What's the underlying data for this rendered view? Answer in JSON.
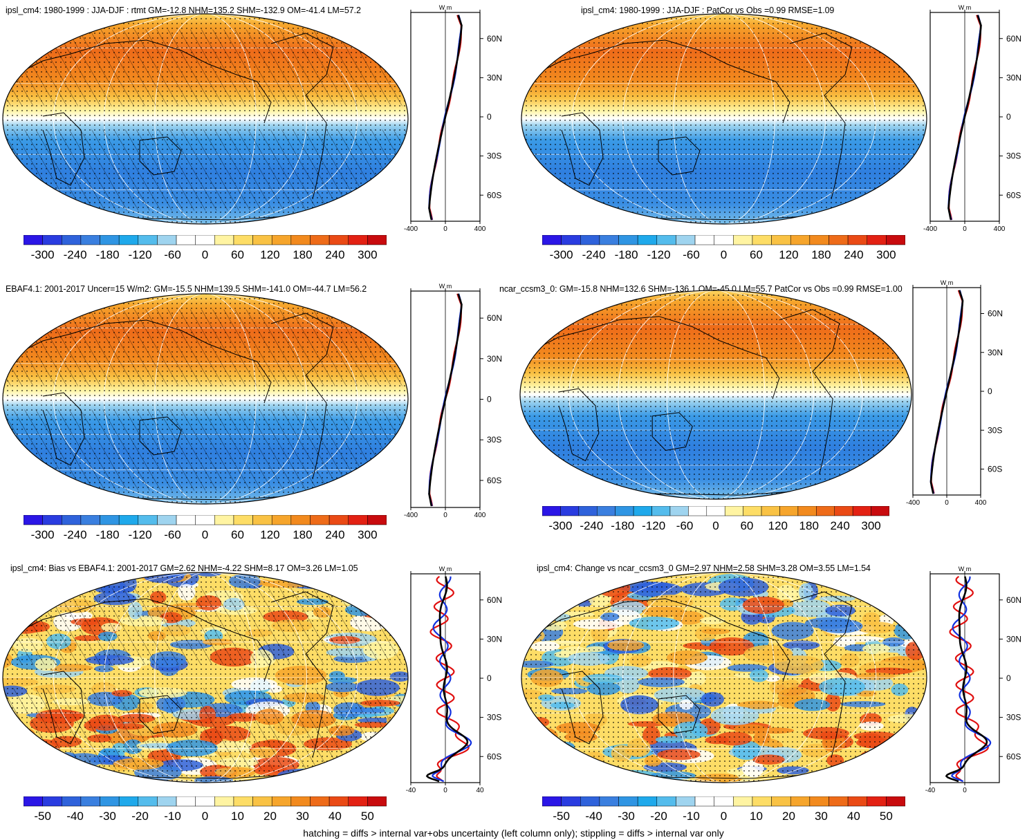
{
  "footer": "hatching = diffs > internal var+obs uncertainty (left column only); stippling = diffs > internal var only",
  "colors": {
    "scale": [
      "#2b16e6",
      "#2a3ce0",
      "#2f62db",
      "#3a7fdf",
      "#2f95e3",
      "#1fa9eb",
      "#54bcec",
      "#9fd4ef",
      "#ffffff",
      "#ffffff",
      "#fff4a2",
      "#fddd66",
      "#f9c244",
      "#f6a52c",
      "#f28a1e",
      "#ee6b19",
      "#ea4a15",
      "#e32113",
      "#c80b0e"
    ],
    "line_model": "#e01010",
    "line_obs": "#1030e0",
    "line_mean": "#000000"
  },
  "chart_data": [
    {
      "id": "p1",
      "type": "heatmap",
      "title": "ipsl_cm4: 1980-1999 : JJA-DJF : rtmt GM=-12.8 NHM=135.2 SHM=-132.9 OM=-41.4 LM=57.2",
      "colorbar": {
        "ticks": [
          "-300",
          "-240",
          "-180",
          "-120",
          "-60",
          "0",
          "60",
          "120",
          "180",
          "240",
          "300"
        ]
      },
      "profile": {
        "xlabel": "W m",
        "x_ticks": [
          "-400",
          "0",
          "400"
        ],
        "xlim": [
          -400,
          400
        ],
        "y_ticks": [
          "60N",
          "30N",
          "0",
          "30S",
          "60S"
        ],
        "ylim": [
          -80,
          80
        ]
      },
      "hatching": true
    },
    {
      "id": "p2",
      "type": "heatmap",
      "title": "ipsl_cm4: 1980-1999 : JJA-DJF : PatCor vs Obs =0.99 RMSE=1.09",
      "colorbar": {
        "ticks": [
          "-300",
          "-240",
          "-180",
          "-120",
          "-60",
          "0",
          "60",
          "120",
          "180",
          "240",
          "300"
        ]
      },
      "profile": {
        "xlabel": "W m",
        "x_ticks": [
          "-400",
          "0",
          "400"
        ],
        "xlim": [
          -400,
          400
        ],
        "y_ticks": [
          "60N",
          "30N",
          "0",
          "30S",
          "60S"
        ],
        "ylim": [
          -80,
          80
        ]
      },
      "hatching": false
    },
    {
      "id": "p3",
      "type": "heatmap",
      "title": "EBAF4.1: 2001-2017 Uncer=15 W/m2: GM=-15.5 NHM=139.5 SHM=-141.0 OM=-44.7 LM=56.2",
      "colorbar": {
        "ticks": [
          "-300",
          "-240",
          "-180",
          "-120",
          "-60",
          "0",
          "60",
          "120",
          "180",
          "240",
          "300"
        ]
      },
      "profile": {
        "xlabel": "W m",
        "x_ticks": [
          "-400",
          "0",
          "400"
        ],
        "xlim": [
          -400,
          400
        ],
        "y_ticks": [
          "60N",
          "30N",
          "0",
          "30S",
          "60S"
        ],
        "ylim": [
          -80,
          80
        ]
      },
      "hatching": true
    },
    {
      "id": "p4",
      "type": "heatmap",
      "title": "ncar_ccsm3_0: GM=-15.8 NHM=132.6 SHM=-136.1 OM=-45.0 LM=55.7 PatCor vs Obs =0.99 RMSE=1.00",
      "colorbar": {
        "ticks": [
          "-300",
          "-240",
          "-180",
          "-120",
          "-60",
          "0",
          "60",
          "120",
          "180",
          "240",
          "300"
        ]
      },
      "profile": {
        "xlabel": "W m",
        "x_ticks": [
          "-400",
          "0",
          "400"
        ],
        "xlim": [
          -400,
          400
        ],
        "y_ticks": [
          "60N",
          "30N",
          "0",
          "30S",
          "60S"
        ],
        "ylim": [
          -80,
          80
        ]
      },
      "hatching": false
    },
    {
      "id": "p5",
      "type": "heatmap",
      "title": "ipsl_cm4: Bias vs EBAF4.1: 2001-2017 GM=2.62 NHM=-4.22 SHM=8.17 OM=3.26 LM=1.05",
      "colorbar": {
        "ticks": [
          "-50",
          "-40",
          "-30",
          "-20",
          "-10",
          "0",
          "10",
          "20",
          "30",
          "40",
          "50"
        ]
      },
      "profile": {
        "xlabel": "W m",
        "x_ticks": [
          "-40",
          "0",
          "40"
        ],
        "xlim": [
          -40,
          40
        ],
        "y_ticks": [
          "60N",
          "30N",
          "0",
          "30S",
          "60S"
        ],
        "ylim": [
          -80,
          80
        ]
      },
      "hatching": true
    },
    {
      "id": "p6",
      "type": "heatmap",
      "title": "ipsl_cm4: Change vs ncar_ccsm3_0 GM=2.97 NHM=2.58 SHM=3.28 OM=3.55 LM=1.54",
      "colorbar": {
        "ticks": [
          "-50",
          "-40",
          "-30",
          "-20",
          "-10",
          "0",
          "10",
          "20",
          "30",
          "40",
          "50"
        ]
      },
      "profile": {
        "xlabel": "W m",
        "x_ticks": [
          "-40",
          "0"
        ],
        "xlim": [
          -40,
          40
        ],
        "y_ticks": [
          "60N",
          "30N",
          "0",
          "30S",
          "60S"
        ],
        "ylim": [
          -80,
          80
        ]
      },
      "hatching": false
    }
  ]
}
